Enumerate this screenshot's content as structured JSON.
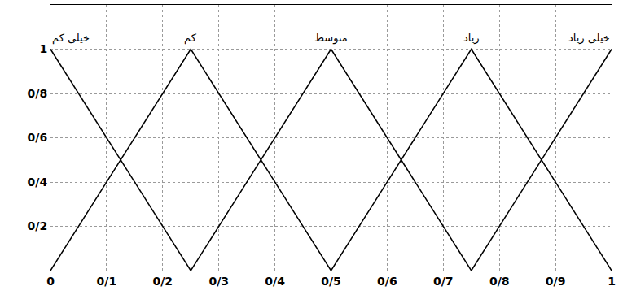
{
  "chart_data": {
    "type": "line",
    "series": [
      {
        "name": "خیلی کم",
        "color": "#000000",
        "x": [
          0,
          0.25
        ],
        "values": [
          1,
          0
        ]
      },
      {
        "name": "کم",
        "color": "#000000",
        "x": [
          0,
          0.25,
          0.5
        ],
        "values": [
          0,
          1,
          0
        ]
      },
      {
        "name": "متوسط",
        "color": "#000000",
        "x": [
          0.25,
          0.5,
          0.75
        ],
        "values": [
          0,
          1,
          0
        ]
      },
      {
        "name": "زیاد",
        "color": "#000000",
        "x": [
          0.5,
          0.75,
          1
        ],
        "values": [
          0,
          1,
          0
        ]
      },
      {
        "name": "خیلی زیاد",
        "color": "#000000",
        "x": [
          0.75,
          1
        ],
        "values": [
          0,
          1
        ]
      }
    ],
    "xlim": [
      0,
      1
    ],
    "xticks": [
      0,
      {
        "value": 0.1,
        "label": "0/1"
      },
      {
        "value": 0.2,
        "label": "0/2"
      },
      {
        "value": 0.3,
        "label": "0/3"
      },
      {
        "value": 0.4,
        "label": "0/4"
      },
      {
        "value": 0.5,
        "label": "0/5"
      },
      {
        "value": 0.6,
        "label": "0/6"
      },
      {
        "value": 0.7,
        "label": "0/7"
      },
      {
        "value": 0.8,
        "label": "0/8"
      },
      {
        "value": 0.9,
        "label": "0/9"
      },
      1
    ],
    "ylim": [
      0,
      1.2
    ],
    "yticks": [
      {
        "value": 0.2,
        "label": "0/2"
      },
      {
        "value": 0.4,
        "label": "0/4"
      },
      {
        "value": 0.6,
        "label": "0/6"
      },
      {
        "value": 0.8,
        "label": "0/8"
      },
      1
    ],
    "grid": true
  }
}
